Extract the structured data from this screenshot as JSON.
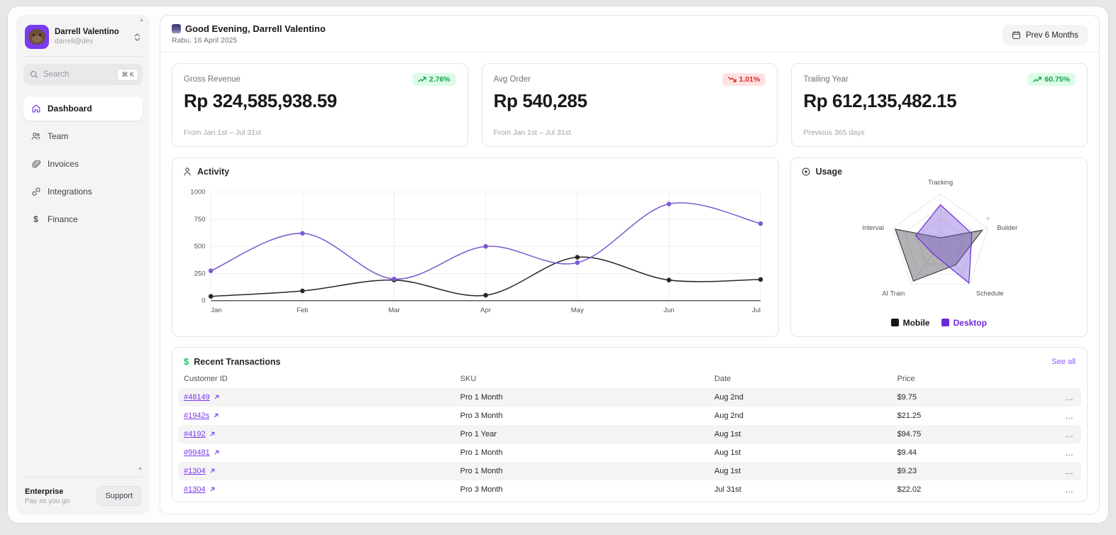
{
  "sidebar": {
    "user": {
      "name": "Darrell Valentino",
      "email": "darrell@dev"
    },
    "search": {
      "placeholder": "Search",
      "shortcut": "⌘ K"
    },
    "items": [
      {
        "label": "Dashboard",
        "icon": "home",
        "active": true
      },
      {
        "label": "Team",
        "icon": "users",
        "active": false
      },
      {
        "label": "Invoices",
        "icon": "paperclip",
        "active": false
      },
      {
        "label": "Integrations",
        "icon": "link",
        "active": false
      },
      {
        "label": "Finance",
        "icon": "dollar",
        "active": false
      }
    ],
    "plan": {
      "name": "Enterprise",
      "detail": "Pay as you go",
      "support_label": "Support"
    }
  },
  "header": {
    "greeting": "Good Evening, Darrell Valentino",
    "date": "Rabu, 16 April 2025",
    "range_button": "Prev 6 Months"
  },
  "stats": [
    {
      "label": "Gross Revenue",
      "value": "Rp 324,585,938.59",
      "change": "2.76%",
      "direction": "up",
      "footnote": "From Jan 1st – Jul 31st"
    },
    {
      "label": "Avg Order",
      "value": "Rp 540,285",
      "change": "1.01%",
      "direction": "down",
      "footnote": "From Jan 1st – Jul 31st"
    },
    {
      "label": "Trailing Year",
      "value": "Rp 612,135,482.15",
      "change": "60.75%",
      "direction": "up",
      "footnote": "Previous 365 days"
    }
  ],
  "chart_data": [
    {
      "type": "line",
      "title": "Activity",
      "x": [
        "Jan",
        "Feb",
        "Mar",
        "Apr",
        "May",
        "Jun",
        "Jul"
      ],
      "series": [
        {
          "name": "Mobile",
          "color": "#27272a",
          "values": [
            40,
            90,
            190,
            50,
            400,
            190,
            195
          ]
        },
        {
          "name": "Desktop",
          "color": "#7a5cd0",
          "values": [
            275,
            620,
            200,
            500,
            350,
            890,
            710
          ]
        }
      ],
      "ylim": [
        0,
        1000
      ],
      "yticks": [
        0,
        250,
        500,
        750,
        1000
      ],
      "grid": true,
      "legend_position": "none"
    },
    {
      "type": "radar",
      "title": "Usage",
      "axes": [
        "Tracking",
        "Builder",
        "Schedule",
        "AI Train",
        "Interval"
      ],
      "series": [
        {
          "name": "Mobile",
          "color": "#3f3f46",
          "fill": "rgba(63,63,70,0.40)",
          "swatch": "#18181b",
          "values": [
            0.12,
            0.88,
            0.52,
            0.92,
            0.95
          ]
        },
        {
          "name": "Desktop",
          "color": "#6d28d9",
          "fill": "rgba(124,88,216,0.40)",
          "swatch": "#6d28d9",
          "values": [
            0.78,
            0.66,
            0.97,
            0.25,
            0.52
          ]
        }
      ],
      "max": 1,
      "legend_position": "bottom"
    }
  ],
  "transactions": {
    "title": "Recent Transactions",
    "see_all": "See all",
    "columns": [
      "Customer ID",
      "SKU",
      "Date",
      "Price"
    ],
    "rows": [
      {
        "id": "#48149",
        "sku": "Pro 1 Month",
        "date": "Aug 2nd",
        "price": "$9.75"
      },
      {
        "id": "#1942s",
        "sku": "Pro 3 Month",
        "date": "Aug 2nd",
        "price": "$21.25"
      },
      {
        "id": "#4192",
        "sku": "Pro 1 Year",
        "date": "Aug 1st",
        "price": "$94.75"
      },
      {
        "id": "#99481",
        "sku": "Pro 1 Month",
        "date": "Aug 1st",
        "price": "$9.44"
      },
      {
        "id": "#1304",
        "sku": "Pro 1 Month",
        "date": "Aug 1st",
        "price": "$9.23"
      },
      {
        "id": "#1304",
        "sku": "Pro 3 Month",
        "date": "Jul 31st",
        "price": "$22.02"
      }
    ]
  },
  "icons": {
    "ellipsis": "…",
    "scroll_up": "▲",
    "scroll_down": "▼",
    "dollar": "$",
    "sparkle": "✦"
  },
  "colors": {
    "accent": "#7c3aed",
    "accent_dark": "#6d28d9",
    "positive": "#16a34a",
    "positive_bg": "#dcfce7",
    "negative": "#dc2626",
    "negative_bg": "#fee2e2",
    "sidebar_bg": "#f4f4f5",
    "row_stripe": "#f4f4f5"
  }
}
